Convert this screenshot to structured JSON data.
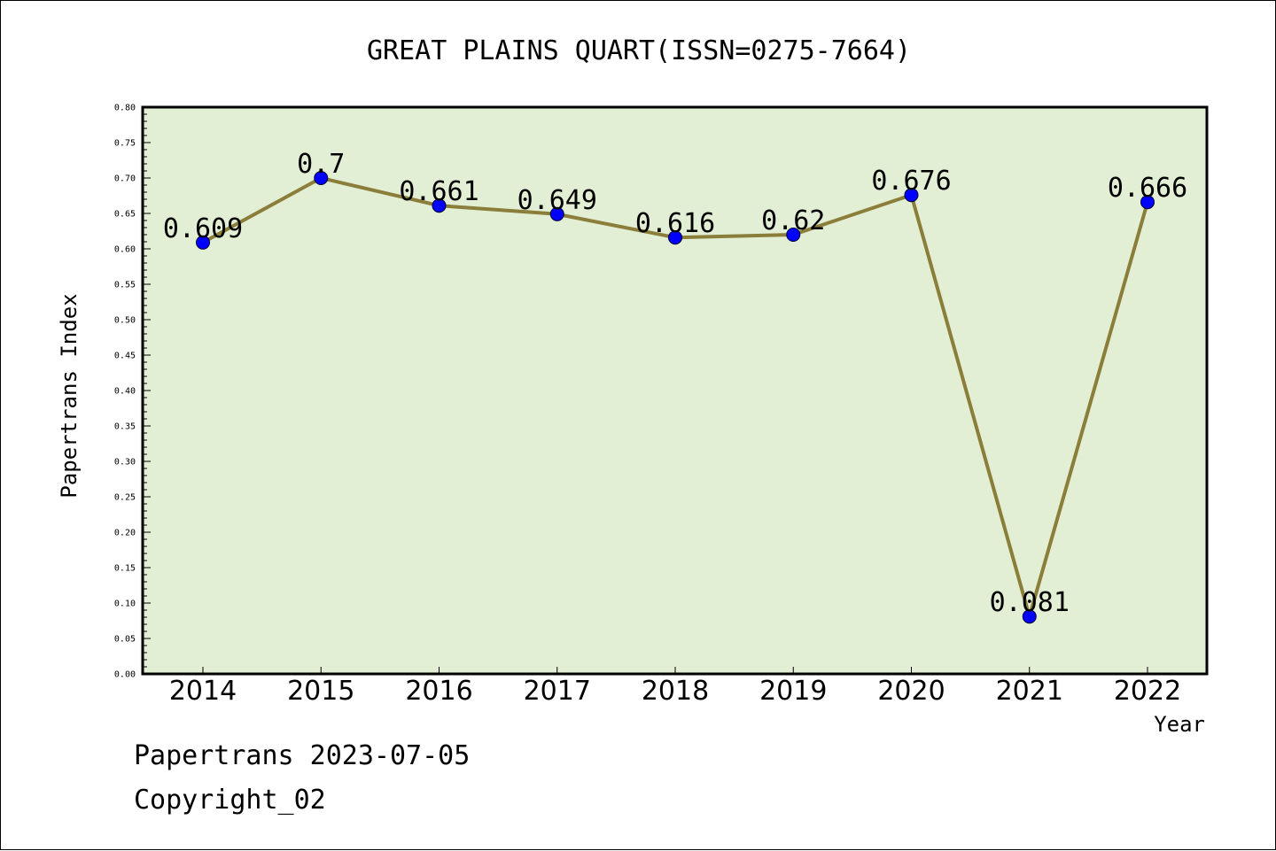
{
  "chart_data": {
    "type": "line",
    "title": "GREAT PLAINS QUART(ISSN=0275-7664)",
    "xlabel": "Year",
    "ylabel": "Papertrans Index",
    "categories": [
      "2014",
      "2015",
      "2016",
      "2017",
      "2018",
      "2019",
      "2020",
      "2021",
      "2022"
    ],
    "series": [
      {
        "values": [
          0.609,
          0.7,
          0.661,
          0.649,
          0.616,
          0.62,
          0.676,
          0.081,
          0.666
        ],
        "data_labels": [
          "0.609",
          "0.7",
          "0.661",
          "0.649",
          "0.616",
          "0.62",
          "0.676",
          "0.081",
          "0.666"
        ],
        "line_color": "#8b7d3a",
        "marker_color": "#0000ff"
      }
    ],
    "ylim": [
      0,
      0.8
    ],
    "yticks": [
      "0.00",
      "0.05",
      "0.10",
      "0.15",
      "0.20",
      "0.25",
      "0.30",
      "0.35",
      "0.40",
      "0.45",
      "0.50",
      "0.55",
      "0.60",
      "0.65",
      "0.70",
      "0.75",
      "0.80"
    ],
    "grid": false,
    "legend": "none",
    "plot_background": "#e2efd4"
  },
  "footer": {
    "line1": "Papertrans 2023-07-05",
    "line2": "Copyright_02"
  }
}
